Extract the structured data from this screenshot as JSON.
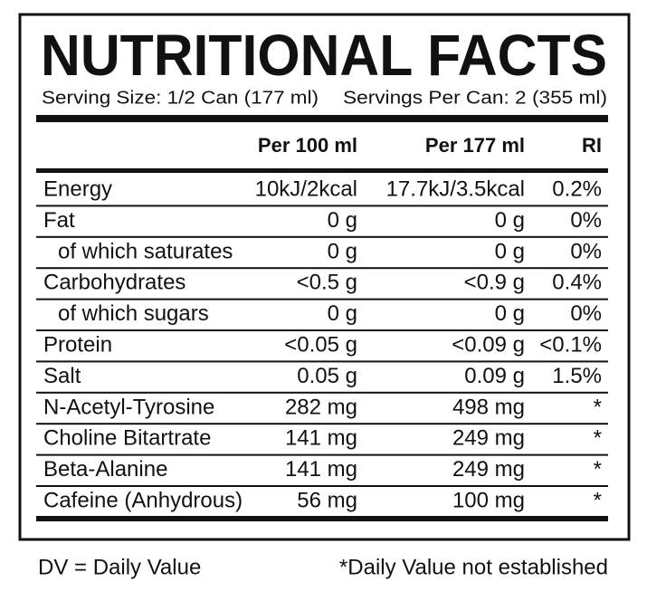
{
  "header": {
    "title": "NUTRITIONAL FACTS",
    "serving_size": "Serving Size: 1/2 Can (177 ml)",
    "servings_per_can": "Servings Per Can: 2 (355 ml)"
  },
  "table": {
    "columns": [
      "Per 100 ml",
      "Per 177 ml",
      "RI"
    ],
    "rows": [
      [
        "Energy",
        "10kJ/2kcal",
        "17.7kJ/3.5kcal",
        "0.2%"
      ],
      [
        "Fat",
        "0 g",
        "0 g",
        "0%"
      ],
      [
        "of which saturates",
        "0 g",
        "0 g",
        "0%"
      ],
      [
        "Carbohydrates",
        "<0.5 g",
        "<0.9 g",
        "0.4%"
      ],
      [
        "of which sugars",
        "0 g",
        "0 g",
        "0%"
      ],
      [
        "Protein",
        "<0.05 g",
        "<0.09 g",
        "<0.1%"
      ],
      [
        "Salt",
        "0.05 g",
        "0.09 g",
        "1.5%"
      ],
      [
        "N-Acetyl-Tyrosine",
        "282 mg",
        "498 mg",
        "*"
      ],
      [
        "Choline Bitartrate",
        "141 mg",
        "249 mg",
        "*"
      ],
      [
        "Beta-Alanine",
        "141 mg",
        "249 mg",
        "*"
      ],
      [
        "Cafeine (Anhydrous)",
        "56 mg",
        "100 mg",
        "*"
      ]
    ]
  },
  "footer": {
    "left": "DV = Daily Value",
    "right": "*Daily Value not established"
  }
}
